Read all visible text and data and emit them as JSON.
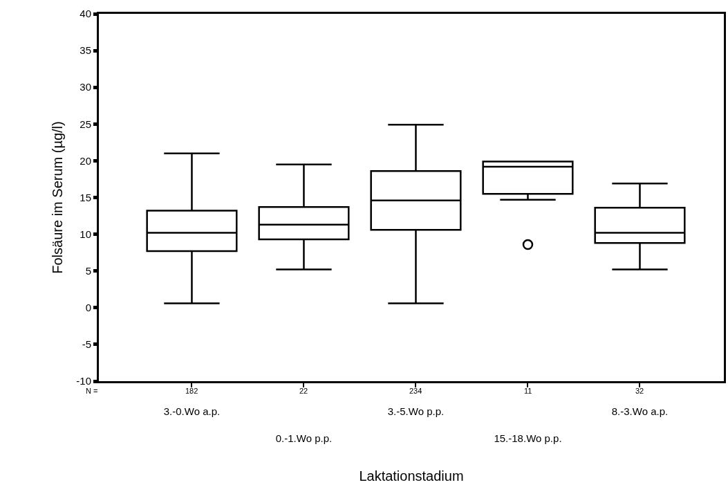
{
  "chart_data": {
    "type": "box",
    "xlabel": "Laktationstadium",
    "ylabel": "Folsäure im Serum (µg/l)",
    "categories": [
      "3.-0.Wo a.p.",
      "0.-1.Wo p.p.",
      "3.-5.Wo p.p.",
      "15.-18.Wo p.p.",
      "8.-3.Wo a.p."
    ],
    "boxes": [
      {
        "low": 0.6,
        "q1": 7.7,
        "median": 10.2,
        "q3": 13.2,
        "high": 21.0
      },
      {
        "low": 5.2,
        "q1": 9.3,
        "median": 11.3,
        "q3": 13.7,
        "high": 19.5
      },
      {
        "low": 0.6,
        "q1": 10.6,
        "median": 14.6,
        "q3": 18.6,
        "high": 24.9
      },
      {
        "low": 14.7,
        "q1": 15.5,
        "median": 19.2,
        "q3": 19.9,
        "high": 19.9,
        "outliers": [
          8.6
        ]
      },
      {
        "low": 5.2,
        "q1": 8.8,
        "median": 10.2,
        "q3": 13.6,
        "high": 16.9
      }
    ],
    "color": "#000000",
    "ylim": [
      -10,
      40
    ],
    "yticks": [
      -10,
      -5,
      0,
      5,
      10,
      15,
      20,
      25,
      30,
      35,
      40
    ],
    "annotations": [
      "N =",
      "182",
      "22",
      "234",
      "11",
      "32"
    ]
  }
}
